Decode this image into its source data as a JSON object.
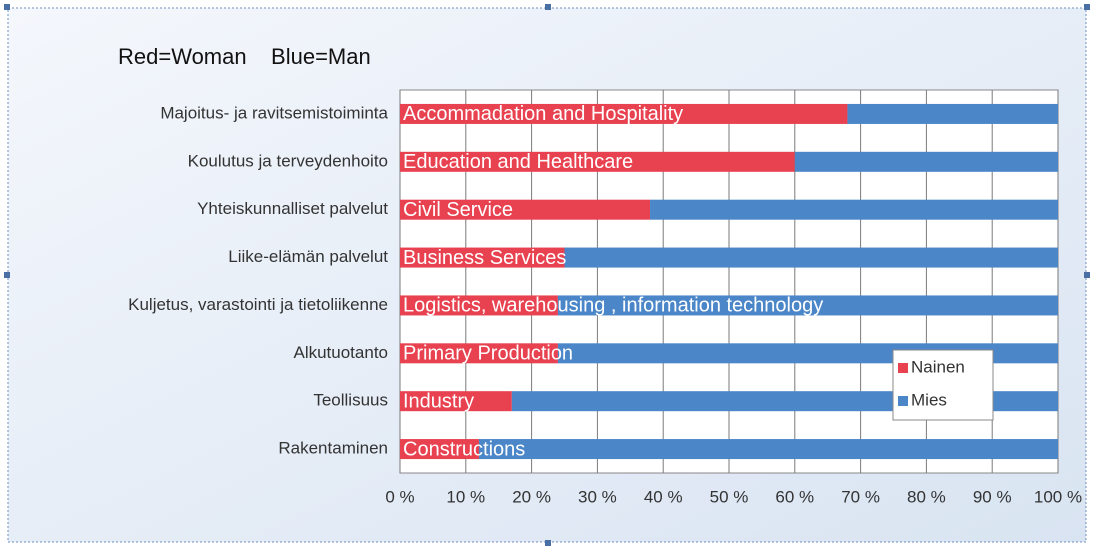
{
  "chart_data": {
    "type": "bar",
    "orientation": "horizontal",
    "stacked": true,
    "note": "Red=Woman    Blue=Man",
    "categories": [
      "Majoitus- ja ravitsemistoiminta",
      "Koulutus ja terveydenhoito",
      "Yhteiskunnalliset palvelut",
      "Liike-elämän palvelut",
      "Kuljetus, varastointi ja tietoliikenne",
      "Alkutuotanto",
      "Teollisuus",
      "Rakentaminen"
    ],
    "annotations": [
      "Accommadation and Hospitality",
      "Education and Healthcare",
      "Civil Service",
      "Business Services",
      "Logistics, warehousing , information technology",
      "Primary Production",
      "Industry",
      "Constructions"
    ],
    "series": [
      {
        "name": "Nainen",
        "color": "#e8414f",
        "values": [
          68,
          60,
          38,
          25,
          24,
          24,
          17,
          12
        ]
      },
      {
        "name": "Mies",
        "color": "#4a86c8",
        "values": [
          32,
          40,
          62,
          75,
          76,
          76,
          83,
          88
        ]
      }
    ],
    "xlim": [
      0,
      100
    ],
    "xticks": [
      {
        "value": 0,
        "label": "0 %"
      },
      {
        "value": 10,
        "label": "10 %"
      },
      {
        "value": 20,
        "label": "20 %"
      },
      {
        "value": 30,
        "label": "30 %"
      },
      {
        "value": 40,
        "label": "40 %"
      },
      {
        "value": 50,
        "label": "50 %"
      },
      {
        "value": 60,
        "label": "60 %"
      },
      {
        "value": 70,
        "label": "70 %"
      },
      {
        "value": 80,
        "label": "80 %"
      },
      {
        "value": 90,
        "label": "90 %"
      },
      {
        "value": 100,
        "label": "100 %"
      }
    ],
    "grid": true,
    "legend": "lower-right"
  }
}
